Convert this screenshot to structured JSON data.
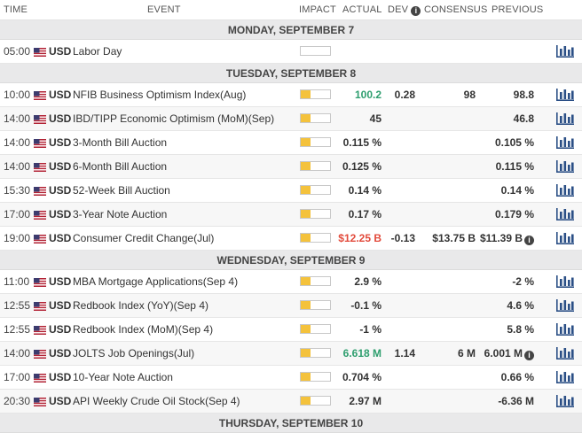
{
  "header": {
    "time": "TIME",
    "event": "EVENT",
    "impact": "IMPACT",
    "actual": "ACTUAL",
    "dev": "DEV",
    "consensus": "CONSENSUS",
    "previous": "PREVIOUS"
  },
  "days": [
    {
      "label": "MONDAY, SEPTEMBER 7",
      "events": [
        {
          "time": "05:00",
          "currency": "USD",
          "event": "Labor Day",
          "impact": 0,
          "actual": "",
          "actual_color": "",
          "dev": "",
          "consensus": "",
          "previous": "",
          "previous_info": false
        }
      ]
    },
    {
      "label": "TUESDAY, SEPTEMBER 8",
      "events": [
        {
          "time": "10:00",
          "currency": "USD",
          "event": "NFIB Business Optimism Index(Aug)",
          "impact": 0.33,
          "actual": "100.2",
          "actual_color": "pos",
          "dev": "0.28",
          "consensus": "98",
          "previous": "98.8",
          "previous_info": false
        },
        {
          "time": "14:00",
          "currency": "USD",
          "event": "IBD/TIPP Economic Optimism (MoM)(Sep)",
          "impact": 0.33,
          "actual": "45",
          "actual_color": "",
          "dev": "",
          "consensus": "",
          "previous": "46.8",
          "previous_info": false
        },
        {
          "time": "14:00",
          "currency": "USD",
          "event": "3-Month Bill Auction",
          "impact": 0.33,
          "actual": "0.115 %",
          "actual_color": "",
          "dev": "",
          "consensus": "",
          "previous": "0.105 %",
          "previous_info": false
        },
        {
          "time": "14:00",
          "currency": "USD",
          "event": "6-Month Bill Auction",
          "impact": 0.33,
          "actual": "0.125 %",
          "actual_color": "",
          "dev": "",
          "consensus": "",
          "previous": "0.115 %",
          "previous_info": false
        },
        {
          "time": "15:30",
          "currency": "USD",
          "event": "52-Week Bill Auction",
          "impact": 0.33,
          "actual": "0.14 %",
          "actual_color": "",
          "dev": "",
          "consensus": "",
          "previous": "0.14 %",
          "previous_info": false
        },
        {
          "time": "17:00",
          "currency": "USD",
          "event": "3-Year Note Auction",
          "impact": 0.33,
          "actual": "0.17 %",
          "actual_color": "",
          "dev": "",
          "consensus": "",
          "previous": "0.179 %",
          "previous_info": false
        },
        {
          "time": "19:00",
          "currency": "USD",
          "event": "Consumer Credit Change(Jul)",
          "impact": 0.33,
          "actual": "$12.25 B",
          "actual_color": "neg",
          "dev": "-0.13",
          "consensus": "$13.75 B",
          "previous": "$11.39 B",
          "previous_info": true
        }
      ]
    },
    {
      "label": "WEDNESDAY, SEPTEMBER 9",
      "events": [
        {
          "time": "11:00",
          "currency": "USD",
          "event": "MBA Mortgage Applications(Sep 4)",
          "impact": 0.33,
          "actual": "2.9 %",
          "actual_color": "",
          "dev": "",
          "consensus": "",
          "previous": "-2 %",
          "previous_info": false
        },
        {
          "time": "12:55",
          "currency": "USD",
          "event": "Redbook Index (YoY)(Sep 4)",
          "impact": 0.33,
          "actual": "-0.1 %",
          "actual_color": "",
          "dev": "",
          "consensus": "",
          "previous": "4.6 %",
          "previous_info": false
        },
        {
          "time": "12:55",
          "currency": "USD",
          "event": "Redbook Index (MoM)(Sep 4)",
          "impact": 0.33,
          "actual": "-1 %",
          "actual_color": "",
          "dev": "",
          "consensus": "",
          "previous": "5.8 %",
          "previous_info": false
        },
        {
          "time": "14:00",
          "currency": "USD",
          "event": "JOLTS Job Openings(Jul)",
          "impact": 0.33,
          "actual": "6.618 M",
          "actual_color": "pos",
          "dev": "1.14",
          "consensus": "6 M",
          "previous": "6.001 M",
          "previous_info": true
        },
        {
          "time": "17:00",
          "currency": "USD",
          "event": "10-Year Note Auction",
          "impact": 0.33,
          "actual": "0.704 %",
          "actual_color": "",
          "dev": "",
          "consensus": "",
          "previous": "0.66 %",
          "previous_info": false
        },
        {
          "time": "20:30",
          "currency": "USD",
          "event": "API Weekly Crude Oil Stock(Sep 4)",
          "impact": 0.33,
          "actual": "2.97 M",
          "actual_color": "",
          "dev": "",
          "consensus": "",
          "previous": "-6.36 M",
          "previous_info": false
        }
      ]
    },
    {
      "label": "THURSDAY, SEPTEMBER 10",
      "events": []
    }
  ],
  "colors": {
    "impact_fill": "#f4c23c",
    "positive": "#2e9e6e",
    "negative": "#e24a3b",
    "day_bg": "#e9e9ea"
  },
  "icons": {
    "flag": "us-flag-icon",
    "chart": "bar-chart-icon",
    "info": "info-icon"
  }
}
